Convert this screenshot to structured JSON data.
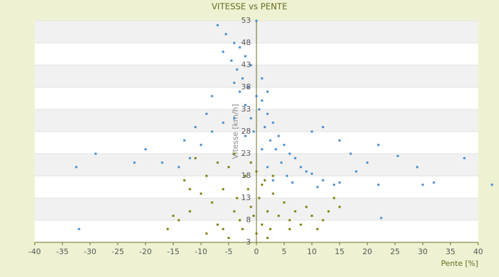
{
  "chart_data": {
    "type": "scatter",
    "title": "VITESSE vs PENTE",
    "x_label": "Pente [%]",
    "y_label": "Vitesse [km/h]",
    "xlim": [
      -40,
      40
    ],
    "xticks": [
      -40,
      -35,
      -30,
      -25,
      -20,
      -15,
      -10,
      -5,
      0,
      5,
      10,
      15,
      20,
      25,
      30,
      35,
      40
    ],
    "ylim": [
      3,
      53
    ],
    "yticks": [
      3,
      8,
      13,
      18,
      23,
      28,
      33,
      38,
      43,
      48,
      53
    ],
    "grid": true,
    "series": [
      {
        "color": "#3b8ad0",
        "x": [
          -7,
          -5.5,
          -4,
          -3,
          -2,
          -4.5,
          -3.5,
          -1,
          -2.5,
          -1.5,
          0,
          -3,
          1,
          -2,
          0.5,
          2,
          -1,
          3,
          -4,
          1.5,
          -0.5,
          4,
          2.5,
          -2,
          5,
          3.5,
          6,
          1,
          7,
          4.5,
          8,
          2,
          9,
          5.5,
          10,
          3,
          12,
          6.5,
          14,
          15,
          11,
          -6,
          -8,
          -10,
          -12,
          -14,
          -17,
          -20,
          -22,
          -13,
          -9,
          -11,
          10,
          12,
          15,
          17,
          20,
          22,
          25.5,
          18,
          22,
          29,
          30,
          32,
          37.5,
          42.5,
          22.5,
          -32.5,
          -29,
          -32,
          0,
          -6,
          -4,
          1,
          2,
          -8
        ],
        "values": [
          52,
          50,
          48,
          47,
          45,
          44,
          42,
          43,
          40,
          38,
          36,
          37,
          35,
          34,
          33,
          32,
          31,
          30,
          31,
          29,
          28,
          27,
          26,
          27,
          25,
          24,
          23,
          24,
          22,
          21,
          20,
          20,
          19,
          18,
          18.5,
          17,
          17,
          16.5,
          16,
          16.5,
          15.5,
          30,
          28,
          25,
          22,
          20,
          21,
          24,
          21,
          26,
          32,
          29,
          28,
          29,
          26,
          23,
          21,
          25,
          22.5,
          19,
          16,
          20,
          16,
          16.5,
          22,
          16,
          8.5,
          20,
          23,
          6,
          53,
          46,
          39,
          40,
          37,
          36
        ]
      },
      {
        "color": "#7a7a00",
        "x": [
          -10,
          -12,
          -14,
          -15,
          -13,
          -11,
          -9,
          -8,
          -7,
          -6,
          -5,
          -4,
          -3,
          -3.5,
          -2,
          -2.5,
          -1,
          -1.5,
          0,
          -0.5,
          0.5,
          1,
          1.5,
          2,
          2.5,
          3,
          4,
          5,
          6,
          7,
          8,
          9,
          10,
          11,
          12,
          13,
          14,
          15,
          -16,
          -9,
          -6,
          6,
          -12,
          -7,
          -4,
          -1,
          0,
          1,
          3,
          -5,
          2
        ],
        "values": [
          14,
          10,
          8,
          9,
          17,
          22,
          18,
          12,
          7,
          15,
          20,
          10,
          8,
          13,
          18,
          6,
          11,
          15,
          5,
          9,
          13,
          7,
          17,
          10,
          6,
          14,
          9,
          12,
          8,
          10,
          7,
          11,
          9,
          6,
          8,
          10,
          13,
          11,
          6,
          5,
          6,
          6,
          15,
          21,
          23,
          21,
          19,
          16,
          18,
          4,
          4
        ]
      }
    ]
  }
}
